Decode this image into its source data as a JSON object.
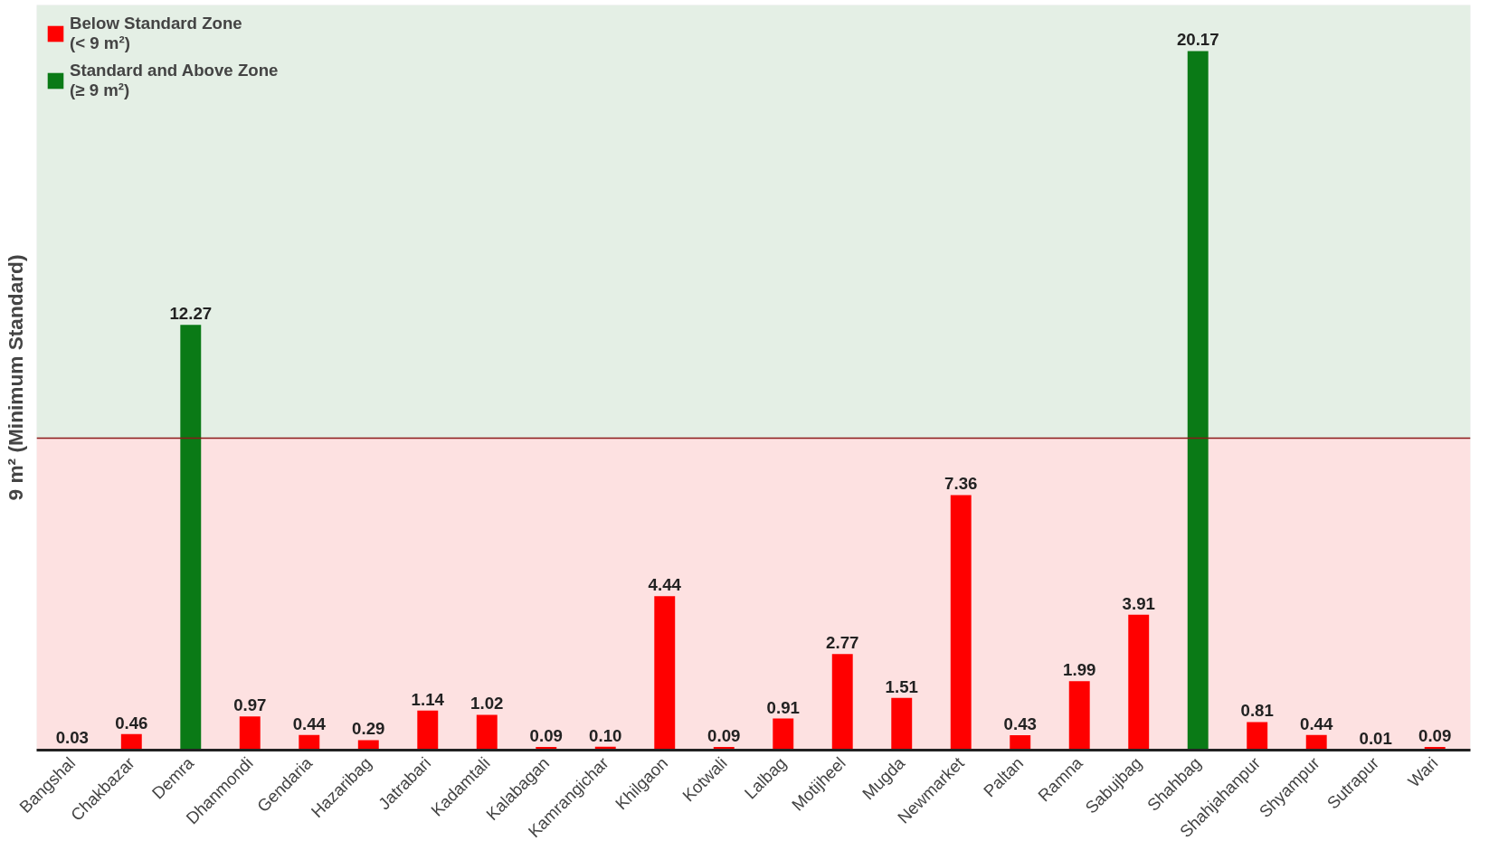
{
  "chart_data": {
    "type": "bar",
    "ylabel": "9 m² (Minimum Standard)",
    "categories": [
      "Bangshal",
      "Chakbazar",
      "Demra",
      "Dhanmondi",
      "Gendaria",
      "Hazaribag",
      "Jatrabari",
      "Kadamtali",
      "Kalabagan",
      "Kamrangichar",
      "Khilgaon",
      "Kotwali",
      "Lalbag",
      "Motijheel",
      "Mugda",
      "Newmarket",
      "Paltan",
      "Ramna",
      "Sabujbag",
      "Shahbag",
      "Shahjahanpur",
      "Shyampur",
      "Sutrapur",
      "Wari"
    ],
    "series": [
      {
        "name": "Below Standard Zone\n(< 9 m²)",
        "color": "#ff0000",
        "values": [
          0.03,
          0.46,
          null,
          0.97,
          0.44,
          0.29,
          1.14,
          1.02,
          0.09,
          0.1,
          4.44,
          0.09,
          0.91,
          2.77,
          1.51,
          7.36,
          0.43,
          1.99,
          3.91,
          null,
          0.81,
          0.44,
          0.01,
          0.09
        ],
        "value_labels": [
          "0.03",
          "0.46",
          null,
          "0.97",
          "0.44",
          "0.29",
          "1.14",
          "1.02",
          "0.09",
          "0.10",
          "4.44",
          "0.09",
          "0.91",
          "2.77",
          "1.51",
          "7.36",
          "0.43",
          "1.99",
          "3.91",
          null,
          "0.81",
          "0.44",
          "0.01",
          "0.09"
        ]
      },
      {
        "name": "Standard and Above Zone\n(≥ 9 m²)",
        "color": "#0a7a16",
        "values": [
          null,
          null,
          12.27,
          null,
          null,
          null,
          null,
          null,
          null,
          null,
          null,
          null,
          null,
          null,
          null,
          null,
          null,
          null,
          null,
          20.17,
          null,
          null,
          null,
          null
        ],
        "value_labels": [
          null,
          null,
          "12.27",
          null,
          null,
          null,
          null,
          null,
          null,
          null,
          null,
          null,
          null,
          null,
          null,
          null,
          null,
          null,
          null,
          "20.17",
          null,
          null,
          null,
          null
        ]
      }
    ],
    "ylim": [
      0,
      21.5
    ],
    "tick_labels": "x",
    "ref_lines": [
      {
        "axis": "y",
        "value": 9,
        "color": "#8b1a1a"
      }
    ],
    "bands": [
      {
        "axis": "y",
        "from": 0,
        "to": 9,
        "color": "#fde1e1"
      },
      {
        "axis": "y",
        "from": 9,
        "to": 21.5,
        "color": "#e4efe5"
      }
    ],
    "legend": "top left"
  }
}
